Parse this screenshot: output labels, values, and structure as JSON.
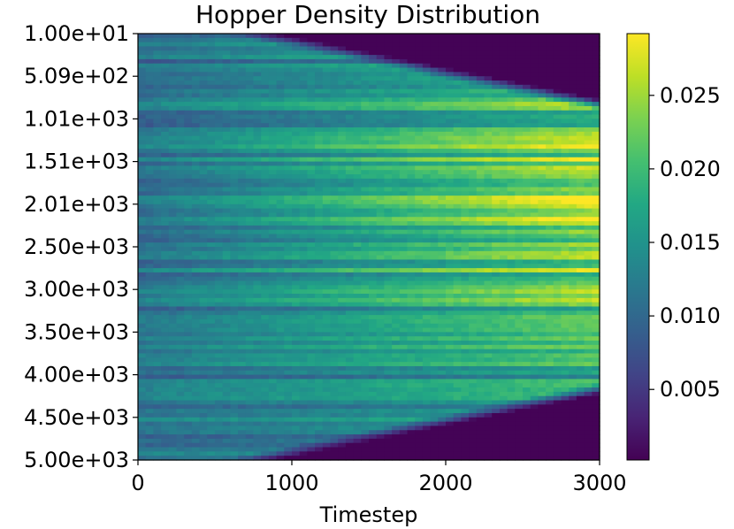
{
  "chart_data": {
    "type": "heatmap",
    "title": "Hopper Density Distribution",
    "xlabel": "Timestep",
    "ylabel": "",
    "xlim": [
      0,
      3000
    ],
    "x_ticks": [
      "0",
      "1000",
      "2000",
      "3000"
    ],
    "y_ticks": [
      "1.00e+01",
      "5.09e+02",
      "1.01e+03",
      "1.51e+03",
      "2.01e+03",
      "2.50e+03",
      "3.00e+03",
      "3.50e+03",
      "4.00e+03",
      "4.50e+03",
      "5.00e+03"
    ],
    "y_range": [
      10,
      5000
    ],
    "colormap": "viridis",
    "colorbar": {
      "range": [
        0.0002,
        0.0292
      ],
      "ticks": [
        "0.005",
        "0.010",
        "0.015",
        "0.020",
        "0.025"
      ]
    },
    "density_profile": {
      "description_level": "approximate",
      "early_value": 0.011,
      "peak_value": 0.029,
      "low_value": 0.0002
    }
  }
}
